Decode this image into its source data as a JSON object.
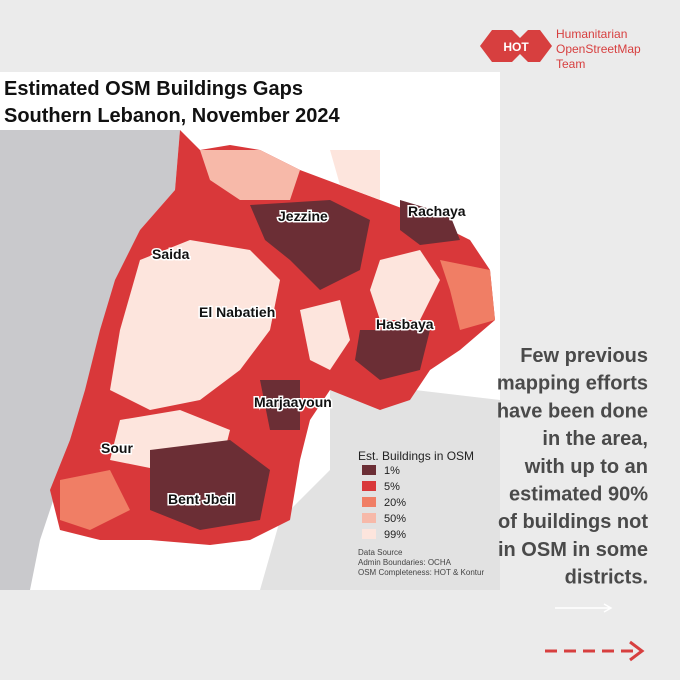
{
  "logo": {
    "badge": "HOT",
    "lines": [
      "Humanitarian",
      "OpenStreetMap",
      "Team"
    ]
  },
  "map": {
    "title": [
      "Estimated OSM Buildings Gaps",
      "Southern Lebanon,  November 2024"
    ],
    "districts": [
      "Jezzine",
      "Rachaya",
      "Saida",
      "El Nabatieh",
      "Hasbaya",
      "Marjaayoun",
      "Sour",
      "Bent Jbeil"
    ],
    "legend": {
      "title": "Est. Buildings in OSM",
      "items": [
        {
          "label": "1%",
          "color": "#6b2e35"
        },
        {
          "label": "5%",
          "color": "#d9383a"
        },
        {
          "label": "20%",
          "color": "#f07e65"
        },
        {
          "label": "50%",
          "color": "#f7b9a9"
        },
        {
          "label": "99%",
          "color": "#fde5dd"
        }
      ]
    },
    "source": [
      "Data Source",
      "Admin Boundaries: OCHA",
      "OSM Completeness: HOT & Kontur"
    ]
  },
  "side_text": [
    "Few previous",
    "mapping efforts",
    "have been done",
    "in the area,",
    "with up to an",
    "estimated 90%",
    "of buildings not",
    "in OSM in some",
    "districts."
  ]
}
